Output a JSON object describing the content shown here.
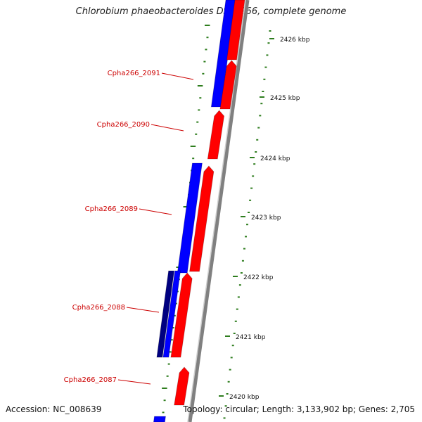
{
  "title": "Chlorobium phaeobacteroides DSM 266, complete genome",
  "footer": {
    "accession": "Accession: NC_008639",
    "summary": "Topology: circular; Length: 3,133,902 bp; Genes: 2,705"
  },
  "gene_labels": [
    "Cpha266_2091",
    "Cpha266_2090",
    "Cpha266_2089",
    "Cpha266_2088",
    "Cpha266_2087"
  ],
  "kbp_ticks": [
    "2426 kbp",
    "2425 kbp",
    "2424 kbp",
    "2423 kbp",
    "2422 kbp",
    "2421 kbp",
    "2420 kbp"
  ],
  "colors": {
    "label_red": "#cc0000",
    "forward_gene": "#ff0000",
    "reverse_gene": "#0000ff",
    "reverse_gene_dark": "#000080",
    "backbone": "#808080",
    "tick_green": "#2e7d1e"
  }
}
